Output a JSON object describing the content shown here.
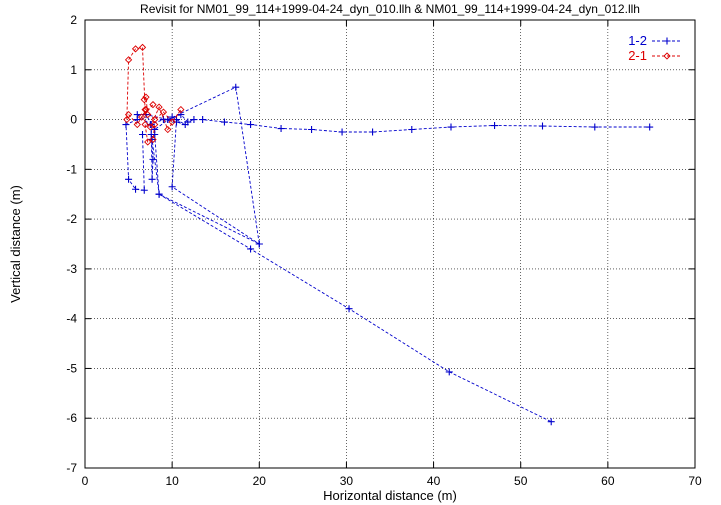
{
  "chart_data": {
    "type": "scatter",
    "title": "Revisit for NM01_99_114+1999-04-24_dyn_010.llh & NM01_99_114+1999-04-24_dyn_012.llh",
    "xlabel": "Horizontal distance (m)",
    "ylabel": "Vertical distance (m)",
    "xlim": [
      0,
      70
    ],
    "ylim": [
      -7,
      2
    ],
    "x_ticks": [
      "0",
      "10",
      "20",
      "30",
      "40",
      "50",
      "60",
      "70"
    ],
    "y_ticks": [
      "-7",
      "-6",
      "-5",
      "-4",
      "-3",
      "-2",
      "-1",
      "0",
      "1",
      "2"
    ],
    "grid": true,
    "legend_position": "top-right",
    "series": [
      {
        "name": "1-2",
        "color": "#0000cc",
        "marker": "plus",
        "line": "dashed",
        "points": [
          [
            6.0,
            0.1
          ],
          [
            7.5,
            -0.1
          ],
          [
            9.0,
            0.0
          ],
          [
            10.5,
            -0.05
          ],
          [
            11.5,
            -0.1
          ],
          [
            10.0,
            0.05
          ],
          [
            8.0,
            -0.2
          ],
          [
            7.0,
            0.1
          ],
          [
            9.5,
            0.0
          ],
          [
            11.0,
            0.1
          ],
          [
            11.8,
            -0.05
          ],
          [
            12.5,
            0.0
          ],
          [
            13.5,
            0.0
          ],
          [
            16.0,
            -0.05
          ],
          [
            19.0,
            -0.1
          ],
          [
            22.5,
            -0.18
          ],
          [
            26.0,
            -0.2
          ],
          [
            29.5,
            -0.25
          ],
          [
            33.0,
            -0.25
          ],
          [
            37.5,
            -0.2
          ],
          [
            42.0,
            -0.15
          ],
          [
            47.0,
            -0.12
          ],
          [
            52.5,
            -0.13
          ],
          [
            58.5,
            -0.15
          ],
          [
            64.8,
            -0.15
          ]
        ],
        "excursions": [
          [
            [
              9.5,
              0.0
            ],
            [
              17.3,
              0.65
            ],
            [
              20.0,
              -2.5
            ],
            [
              8.5,
              -1.5
            ],
            [
              7.7,
              -0.4
            ]
          ],
          [
            [
              10.5,
              0.0
            ],
            [
              10.0,
              -1.35
            ],
            [
              20.0,
              -2.5
            ]
          ],
          [
            [
              6.0,
              0.0
            ],
            [
              4.7,
              -0.1
            ],
            [
              5.0,
              -1.2
            ],
            [
              5.8,
              -1.4
            ],
            [
              6.8,
              -1.42
            ],
            [
              6.6,
              -0.3
            ]
          ],
          [
            [
              7.6,
              -0.1
            ],
            [
              7.7,
              -1.2
            ],
            [
              7.8,
              -0.8
            ],
            [
              7.6,
              -0.3
            ]
          ],
          [
            [
              8.0,
              -0.3
            ],
            [
              8.5,
              -1.5
            ],
            [
              19.0,
              -2.6
            ],
            [
              30.3,
              -3.8
            ],
            [
              41.8,
              -5.07
            ],
            [
              53.5,
              -6.07
            ]
          ]
        ]
      },
      {
        "name": "2-1",
        "color": "#dd0000",
        "marker": "diamond",
        "line": "dashed",
        "points": [
          [
            5.0,
            0.1
          ],
          [
            6.0,
            -0.1
          ],
          [
            7.0,
            0.2
          ],
          [
            8.0,
            0.0
          ],
          [
            9.0,
            0.15
          ],
          [
            10.0,
            -0.05
          ],
          [
            11.0,
            0.2
          ],
          [
            9.5,
            -0.2
          ],
          [
            8.5,
            0.25
          ],
          [
            7.5,
            -0.15
          ],
          [
            6.5,
            0.05
          ],
          [
            7.8,
            0.3
          ]
        ],
        "excursions": [
          [
            [
              4.8,
              0.0
            ],
            [
              5.0,
              1.2
            ],
            [
              5.8,
              1.42
            ],
            [
              6.6,
              1.45
            ],
            [
              6.9,
              0.2
            ]
          ],
          [
            [
              6.8,
              0.4
            ],
            [
              7.0,
              0.45
            ],
            [
              7.2,
              0.1
            ]
          ],
          [
            [
              6.9,
              -0.1
            ],
            [
              7.2,
              -0.45
            ],
            [
              7.8,
              -0.4
            ],
            [
              8.0,
              -0.1
            ]
          ]
        ]
      }
    ]
  }
}
